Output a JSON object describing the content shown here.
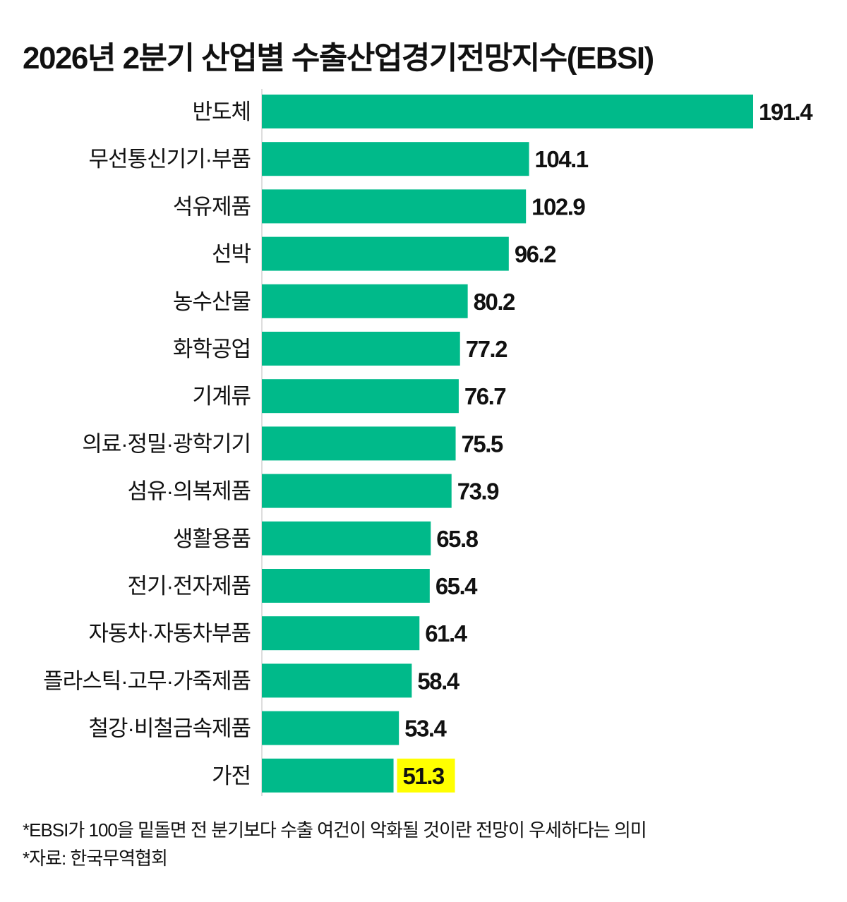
{
  "chart_data": {
    "type": "bar",
    "orientation": "horizontal",
    "title": "2026년 2분기 산업별 수출산업경기전망지수(EBSI)",
    "categories": [
      "반도체",
      "무선통신기기·부품",
      "석유제품",
      "선박",
      "농수산물",
      "화학공업",
      "기계류",
      "의료·정밀·광학기기",
      "섬유·의복제품",
      "생활용품",
      "전기·전자제품",
      "자동차·자동차부품",
      "플라스틱·고무·가죽제품",
      "철강·비철금속제품",
      "가전"
    ],
    "values": [
      191.4,
      104.1,
      102.9,
      96.2,
      80.2,
      77.2,
      76.7,
      75.5,
      73.9,
      65.8,
      65.4,
      61.4,
      58.4,
      53.4,
      51.3
    ],
    "value_labels": [
      "191.4",
      "104.1",
      "102.9",
      "96.2",
      "80.2",
      "77.2",
      "76.7",
      "75.5",
      "73.9",
      "65.8",
      "65.4",
      "61.4",
      "58.4",
      "53.4",
      "51.3"
    ],
    "highlighted_category": "가전",
    "xlim": [
      0,
      191.4
    ],
    "grid": false,
    "colors": {
      "bar": "#00BA8A",
      "highlight": "#FFFF00",
      "text": "#111111"
    }
  },
  "notes": {
    "footnote": "*EBSI가 100을 밑돌면 전 분기보다 수출 여건이 악화될 것이란 전망이 우세하다는 의미",
    "source": "*자료: 한국무역협회"
  }
}
